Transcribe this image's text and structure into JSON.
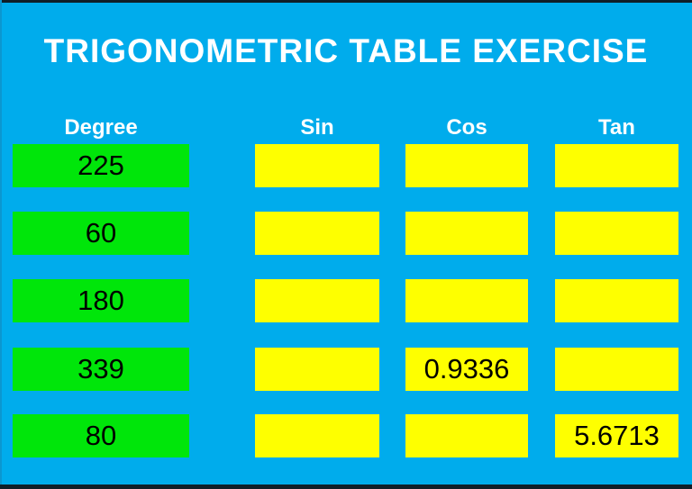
{
  "header": {
    "title": "TRIGONOMETRIC TABLE EXERCISE"
  },
  "table": {
    "columns": {
      "degree": "Degree",
      "sin": "Sin",
      "cos": "Cos",
      "tan": "Tan"
    },
    "rows": [
      {
        "degree": "225",
        "sin": "",
        "cos": "",
        "tan": ""
      },
      {
        "degree": "60",
        "sin": "",
        "cos": "",
        "tan": ""
      },
      {
        "degree": "180",
        "sin": "",
        "cos": "",
        "tan": ""
      },
      {
        "degree": "339",
        "sin": "",
        "cos": "0.9336",
        "tan": ""
      },
      {
        "degree": "80",
        "sin": "",
        "cos": "",
        "tan": "5.6713"
      }
    ]
  },
  "colors": {
    "background": "#00acec",
    "frame": "#0f1e28",
    "edge": "#0b97d0",
    "degree_cell": "#00e60a",
    "answer_cell": "#feff00",
    "header_text": "#ffffff",
    "value_text": "#000000"
  }
}
